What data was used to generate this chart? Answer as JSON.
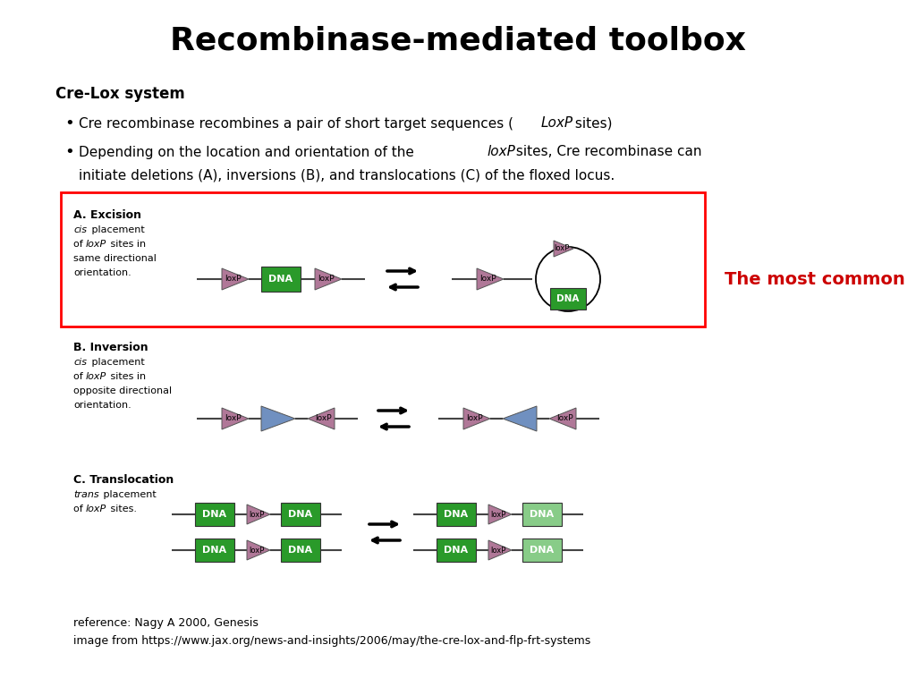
{
  "title": "Recombinase-mediated toolbox",
  "bg_color": "#ffffff",
  "most_common_text": "The most common",
  "most_common_color": "#cc0000",
  "pink_color": "#b07898",
  "green_color": "#2a9a2a",
  "blue_color": "#7090c0",
  "light_green_color": "#88cc88",
  "ref_line1": "reference: Nagy A 2000, Genesis",
  "ref_line2": "image from https://www.jax.org/news-and-insights/2006/may/the-cre-lox-and-flp-frt-systems"
}
